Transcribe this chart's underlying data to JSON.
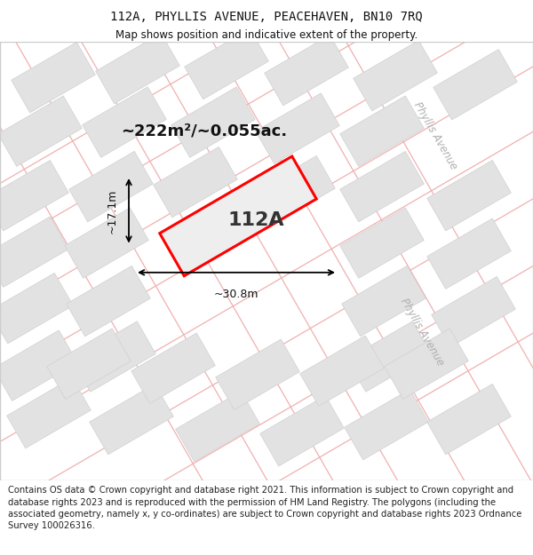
{
  "title": "112A, PHYLLIS AVENUE, PEACEHAVEN, BN10 7RQ",
  "subtitle": "Map shows position and indicative extent of the property.",
  "footer": "Contains OS data © Crown copyright and database right 2021. This information is subject to Crown copyright and database rights 2023 and is reproduced with the permission of HM Land Registry. The polygons (including the associated geometry, namely x, y co-ordinates) are subject to Crown copyright and database rights 2023 Ordnance Survey 100026316.",
  "area_label": "~222m²/~0.055ac.",
  "width_label": "~30.8m",
  "height_label": "~17.1m",
  "plot_label": "112A",
  "map_bg": "#f7f7f7",
  "plot_outline": "#ff0000",
  "grid_line_color": "#f0b0b0",
  "building_fill": "#e2e2e2",
  "building_edge": "#d0d0d0",
  "street_label_color": "#b0b0b0",
  "title_fontsize": 10,
  "subtitle_fontsize": 8.5,
  "footer_fontsize": 7.2,
  "area_fontsize": 13,
  "dim_fontsize": 9,
  "plot_label_fontsize": 16,
  "street_fontsize": 8.5
}
